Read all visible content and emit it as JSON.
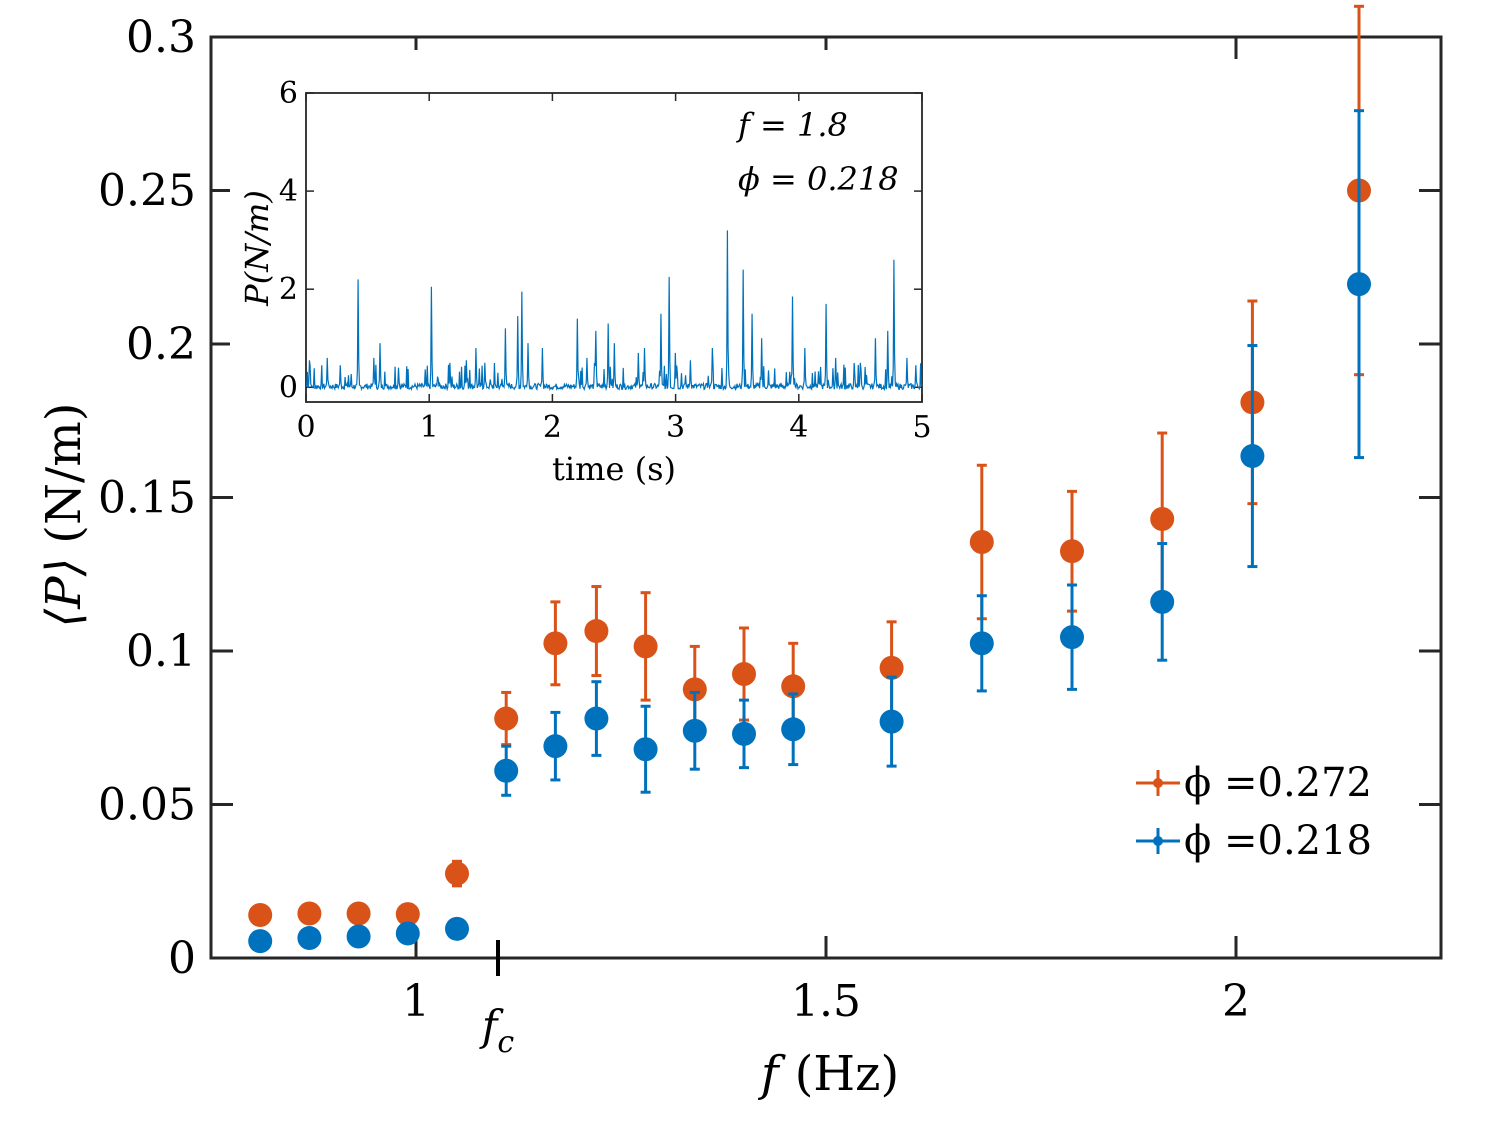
{
  "chart_data": [
    {
      "id": "main",
      "type": "scatter",
      "title": "",
      "xlabel": "f (Hz)",
      "xlabel_var": "f",
      "xlabel_unit": "(Hz)",
      "ylabel": "⟨P⟩ (N/m)",
      "ylabel_var": "⟨P⟩",
      "ylabel_unit": "(N/m)",
      "xlim": [
        0.75,
        2.25
      ],
      "ylim": [
        0,
        0.3
      ],
      "xticks": [
        1,
        1.5,
        2
      ],
      "xtick_labels": [
        "1",
        "1.5",
        "2"
      ],
      "yticks": [
        0,
        0.05,
        0.1,
        0.15,
        0.2,
        0.25,
        0.3
      ],
      "ytick_labels": [
        "0",
        "0.05",
        "0.1",
        "0.15",
        "0.2",
        "0.25",
        "0.3"
      ],
      "grid": false,
      "legend_position": "bottom-right",
      "annotation": {
        "label": "f",
        "subscript": "c",
        "x": 1.1
      },
      "series": [
        {
          "name": "ϕ =0.272",
          "color": "#D95319",
          "x": [
            0.81,
            0.87,
            0.93,
            0.99,
            1.05,
            1.11,
            1.17,
            1.22,
            1.28,
            1.34,
            1.4,
            1.46,
            1.58,
            1.69,
            1.8,
            1.91,
            2.02,
            2.15
          ],
          "y": [
            0.014,
            0.0145,
            0.0145,
            0.0143,
            0.0275,
            0.078,
            0.1025,
            0.1065,
            0.1015,
            0.0875,
            0.0925,
            0.0885,
            0.0945,
            0.1355,
            0.1325,
            0.143,
            0.181,
            0.25
          ],
          "err": [
            0,
            0,
            0,
            0,
            0.004,
            0.0085,
            0.0135,
            0.0145,
            0.0175,
            0.014,
            0.015,
            0.014,
            0.015,
            0.025,
            0.0195,
            0.028,
            0.033,
            0.06
          ]
        },
        {
          "name": "ϕ =0.218",
          "color": "#0072BD",
          "x": [
            0.81,
            0.87,
            0.93,
            0.99,
            1.05,
            1.11,
            1.17,
            1.22,
            1.28,
            1.34,
            1.4,
            1.46,
            1.58,
            1.69,
            1.8,
            1.91,
            2.02,
            2.15
          ],
          "y": [
            0.0055,
            0.0065,
            0.007,
            0.008,
            0.0095,
            0.061,
            0.069,
            0.078,
            0.068,
            0.074,
            0.073,
            0.0745,
            0.077,
            0.1025,
            0.1045,
            0.116,
            0.1635,
            0.2195
          ],
          "err": [
            0,
            0,
            0,
            0,
            0,
            0.008,
            0.011,
            0.012,
            0.014,
            0.0125,
            0.011,
            0.0115,
            0.0145,
            0.0155,
            0.017,
            0.019,
            0.036,
            0.0565
          ]
        }
      ]
    },
    {
      "id": "inset",
      "type": "line",
      "title": "",
      "xlabel": "time (s)",
      "ylabel": "P(N/m)",
      "xlim": [
        0,
        5
      ],
      "ylim": [
        -0.3,
        6
      ],
      "xticks": [
        0,
        1,
        2,
        3,
        4,
        5
      ],
      "xtick_labels": [
        "0",
        "1",
        "2",
        "3",
        "4",
        "5"
      ],
      "yticks": [
        0,
        2,
        4,
        6
      ],
      "ytick_labels": [
        "0",
        "2",
        "4",
        "6"
      ],
      "grid": false,
      "color": "#0072BD",
      "annotations": [
        "f = 1.8",
        "ϕ = 0.218"
      ],
      "baseline": 0.0,
      "spikes": [
        {
          "t": 0.03,
          "v": 0.55
        },
        {
          "t": 0.17,
          "v": 0.6
        },
        {
          "t": 0.28,
          "v": 0.45
        },
        {
          "t": 0.42,
          "v": 2.2
        },
        {
          "t": 0.55,
          "v": 0.6
        },
        {
          "t": 0.6,
          "v": 0.9
        },
        {
          "t": 0.75,
          "v": 0.4
        },
        {
          "t": 1.02,
          "v": 2.05
        },
        {
          "t": 1.17,
          "v": 0.5
        },
        {
          "t": 1.3,
          "v": 0.55
        },
        {
          "t": 1.38,
          "v": 0.8
        },
        {
          "t": 1.45,
          "v": 0.5
        },
        {
          "t": 1.62,
          "v": 1.2
        },
        {
          "t": 1.72,
          "v": 1.45
        },
        {
          "t": 1.75,
          "v": 1.95
        },
        {
          "t": 1.8,
          "v": 0.9
        },
        {
          "t": 1.92,
          "v": 0.8
        },
        {
          "t": 2.2,
          "v": 1.4
        },
        {
          "t": 2.28,
          "v": 0.6
        },
        {
          "t": 2.35,
          "v": 1.15
        },
        {
          "t": 2.45,
          "v": 1.3
        },
        {
          "t": 2.5,
          "v": 0.9
        },
        {
          "t": 2.7,
          "v": 0.7
        },
        {
          "t": 2.75,
          "v": 0.8
        },
        {
          "t": 2.88,
          "v": 1.5
        },
        {
          "t": 2.95,
          "v": 2.25
        },
        {
          "t": 3.0,
          "v": 0.7
        },
        {
          "t": 3.12,
          "v": 0.55
        },
        {
          "t": 3.3,
          "v": 0.8
        },
        {
          "t": 3.42,
          "v": 3.2
        },
        {
          "t": 3.55,
          "v": 2.4
        },
        {
          "t": 3.62,
          "v": 1.5
        },
        {
          "t": 3.7,
          "v": 1.0
        },
        {
          "t": 3.95,
          "v": 1.85
        },
        {
          "t": 4.05,
          "v": 0.8
        },
        {
          "t": 4.22,
          "v": 1.7
        },
        {
          "t": 4.3,
          "v": 0.6
        },
        {
          "t": 4.5,
          "v": 0.5
        },
        {
          "t": 4.62,
          "v": 1.0
        },
        {
          "t": 4.72,
          "v": 1.15
        },
        {
          "t": 4.77,
          "v": 2.6
        },
        {
          "t": 4.88,
          "v": 0.6
        },
        {
          "t": 4.95,
          "v": 0.45
        }
      ]
    }
  ]
}
